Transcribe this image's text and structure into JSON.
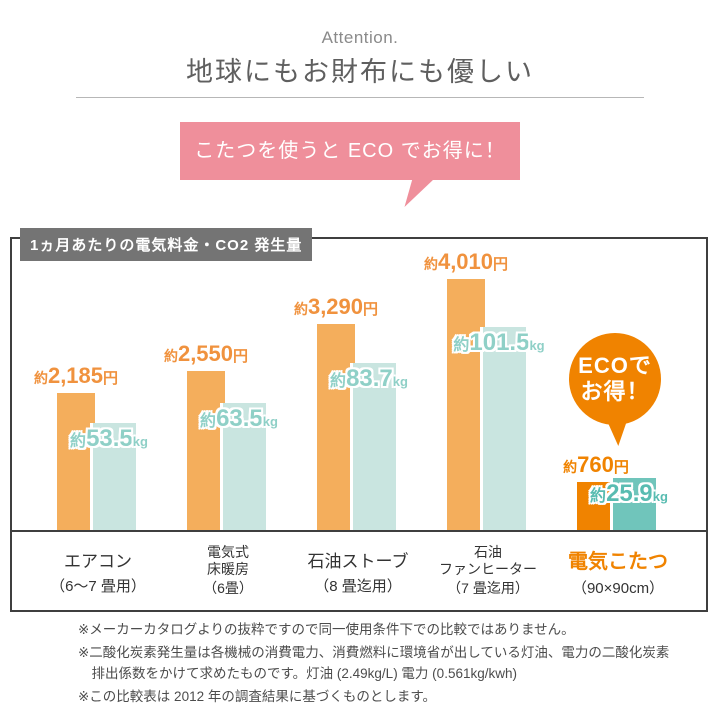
{
  "header": {
    "eyebrow": "Attention.",
    "title": "地球にもお財布にも優しい"
  },
  "bubble": {
    "text": "こたつを使うと ECO でお得に！"
  },
  "badge": {
    "line1": "ECOで",
    "line2": "お得！"
  },
  "chart_data": {
    "type": "bar",
    "title": "1ヵ月あたりの電気料金・CO2 発生量",
    "approx_prefix": "約",
    "units": {
      "price": "円",
      "co2": "kg"
    },
    "legend_position": "none",
    "categories": [
      "エアコン（6〜7畳用）",
      "電気式床暖房（6畳）",
      "石油ストーブ（8畳迄用）",
      "石油ファンヒーター（7畳迄用）",
      "電気こたつ（90×90cm）"
    ],
    "series": [
      {
        "name": "電気料金（円/月）",
        "values": [
          2185,
          2550,
          3290,
          4010,
          760
        ]
      },
      {
        "name": "CO2発生量（kg/月）",
        "values": [
          53.5,
          63.5,
          83.7,
          101.5,
          25.9
        ]
      }
    ],
    "groups": [
      {
        "category_lines": [
          "エアコン",
          "（6〜7 畳用）"
        ],
        "price_yen": 2185,
        "price_text": "2,185",
        "co2_kg": 53.5,
        "co2_text": "53.5",
        "highlight": false
      },
      {
        "category_lines": [
          "電気式",
          "床暖房",
          "（6畳）"
        ],
        "price_yen": 2550,
        "price_text": "2,550",
        "co2_kg": 63.5,
        "co2_text": "63.5",
        "highlight": false
      },
      {
        "category_lines": [
          "石油ストーブ",
          "（8 畳迄用）"
        ],
        "price_yen": 3290,
        "price_text": "3,290",
        "co2_kg": 83.7,
        "co2_text": "83.7",
        "highlight": false
      },
      {
        "category_lines": [
          "石油",
          "ファンヒーター",
          "（7 畳迄用）"
        ],
        "price_yen": 4010,
        "price_text": "4,010",
        "co2_kg": 101.5,
        "co2_text": "101.5",
        "highlight": false
      },
      {
        "category_lines": [
          "電気こたつ",
          "（90×90cm）"
        ],
        "price_yen": 760,
        "price_text": "760",
        "co2_kg": 25.9,
        "co2_text": "25.9",
        "highlight": true
      }
    ]
  },
  "notes": [
    "※メーカーカタログよりの抜粋ですので同一使用条件下での比較ではありません。",
    "※二酸化炭素発生量は各機械の消費電力、消費燃料に環境省が出している灯油、電力の二酸化炭素排出係数をかけて求めたものです。灯油 (2.49kg/L) 電力 (0.561kg/kwh)",
    "※この比較表は 2012 年の調査結果に基づくものとします。"
  ],
  "colors": {
    "pink": "#EF8F9B",
    "title_gray": "#747474",
    "light_orange": "#F4AE5C",
    "vivid_orange": "#F08300",
    "light_teal": "#C9E5E0",
    "vivid_teal": "#70C5BB",
    "price_text": "#F0923E",
    "kg_text": "#8FD0C7",
    "kg_text_hl": "#58BCB1"
  }
}
